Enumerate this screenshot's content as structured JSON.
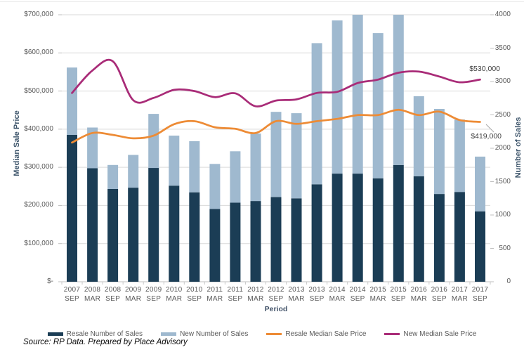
{
  "source_note": "Source: RP Data. Prepared by Place Advisory",
  "colors": {
    "resale_bar": "#1B3D55",
    "new_bar": "#9FB9CF",
    "resale_line": "#ED8B35",
    "new_line": "#A92C78",
    "gridline": "#D9D9D9",
    "axis_line": "#BFBFBF",
    "tick_text": "#595959",
    "leader_line": "#A6A6A6"
  },
  "chart_data": {
    "type": "bar",
    "subtype": "stacked-bars-with-smooth-lines-combo",
    "x_axis_title": "Period",
    "y_left_title": "Median Sale Price",
    "y_right_title": "Number of Sales",
    "grid": true,
    "legend_position": "bottom",
    "categories": [
      "2007 SEP",
      "2008 MAR",
      "2008 SEP",
      "2009 MAR",
      "2009 SEP",
      "2010 MAR",
      "2010 SEP",
      "2011 MAR",
      "2011 SEP",
      "2012 MAR",
      "2012 SEP",
      "2013 MAR",
      "2013 SEP",
      "2014 MAR",
      "2014 SEP",
      "2015 MAR",
      "2015 SEP",
      "2016 MAR",
      "2016 SEP",
      "2017 MAR",
      "2017 SEP"
    ],
    "left_axis": {
      "min": 0,
      "max": 700000,
      "step": 100000,
      "tick_labels": [
        "$-",
        "$100,000",
        "$200,000",
        "$300,000",
        "$400,000",
        "$500,000",
        "$600,000",
        "$700,000"
      ]
    },
    "right_axis": {
      "min": 0,
      "max": 4000,
      "step": 500,
      "tick_labels": [
        "0",
        "500",
        "1000",
        "1500",
        "2000",
        "2500",
        "3000",
        "3500",
        "4000"
      ]
    },
    "bar_series": [
      {
        "name": "Resale Number of Sales",
        "axis": "right",
        "values": [
          2200,
          1700,
          1390,
          1410,
          1705,
          1440,
          1340,
          1090,
          1185,
          1210,
          1270,
          1250,
          1460,
          1620,
          1620,
          1550,
          1750,
          1580,
          1315,
          1345,
          1055
        ]
      },
      {
        "name": "New Number of Sales",
        "axis": "right",
        "values": [
          1010,
          610,
          360,
          490,
          810,
          750,
          765,
          675,
          770,
          1010,
          1275,
          1275,
          2115,
          2295,
          2380,
          2175,
          2250,
          1200,
          1275,
          1085,
          820
        ]
      }
    ],
    "line_series": [
      {
        "name": "Resale Median Sale Price",
        "axis": "left",
        "values": [
          365000,
          390000,
          385000,
          376000,
          383000,
          413000,
          421000,
          405000,
          401000,
          390000,
          421000,
          414000,
          421000,
          427000,
          437000,
          437000,
          451000,
          437000,
          446000,
          424000,
          419000
        ]
      },
      {
        "name": "New Median Sale Price",
        "axis": "left",
        "values": [
          495000,
          554000,
          578000,
          476000,
          482000,
          503000,
          500000,
          484000,
          494000,
          460000,
          475000,
          478000,
          495000,
          498000,
          521000,
          530000,
          548000,
          551000,
          538000,
          523000,
          530000
        ]
      }
    ],
    "annotations": [
      {
        "text": "$530,000",
        "series": "New Median Sale Price",
        "at": "2017 SEP"
      },
      {
        "text": "$419,000",
        "series": "Resale Median Sale Price",
        "at": "2017 SEP"
      }
    ]
  }
}
